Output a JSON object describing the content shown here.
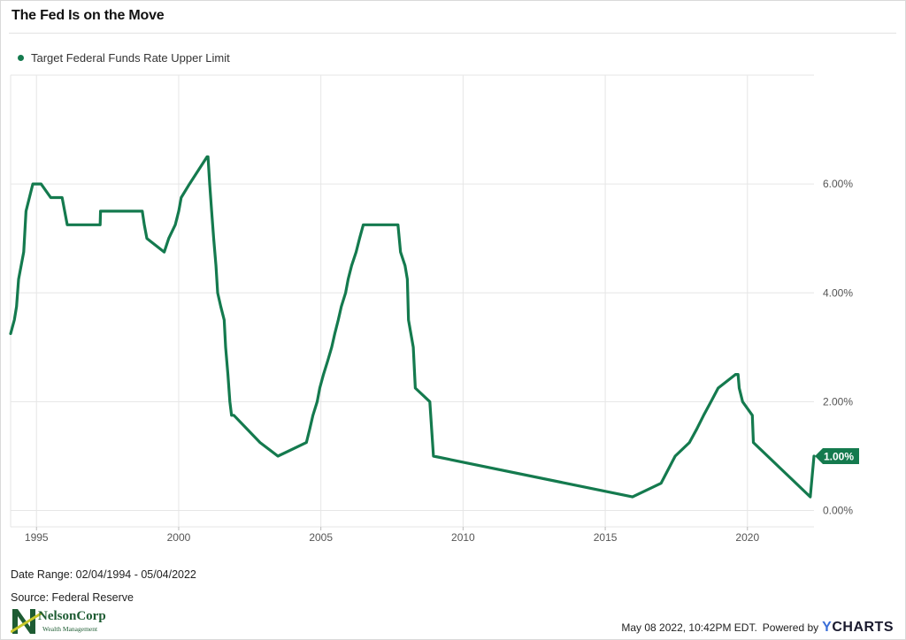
{
  "title": "The Fed Is on the Move",
  "legend": {
    "label": "Target Federal Funds Rate Upper Limit",
    "color": "#147a4e"
  },
  "footer": {
    "date_range": "Date Range: 02/04/1994 - 05/04/2022",
    "source": "Source: Federal Reserve",
    "timestamp": "May 08 2022, 10:42PM EDT.",
    "powered_by": "Powered by",
    "brand_y": "Y",
    "brand_rest": "CHARTS",
    "logo_name": "NelsonCorp",
    "logo_sub": "Wealth Management"
  },
  "chart_data": {
    "type": "line",
    "title": "The Fed Is on the Move",
    "xlabel": "",
    "ylabel": "",
    "x_tick_labels": [
      "1995",
      "2000",
      "2005",
      "2010",
      "2015",
      "2020"
    ],
    "x_tick_values": [
      1995,
      2000,
      2005,
      2010,
      2015,
      2020
    ],
    "y_tick_labels": [
      "0.00%",
      "2.00%",
      "4.00%",
      "6.00%"
    ],
    "y_tick_values": [
      0,
      2,
      4,
      6
    ],
    "xlim": [
      1994.09,
      2022.34
    ],
    "ylim": [
      -0.3,
      8.0
    ],
    "grid": true,
    "legend_position": "top-left",
    "last_value_label": "1.00%",
    "series": [
      {
        "name": "Target Federal Funds Rate Upper Limit",
        "color": "#147a4e",
        "x": [
          1994.09,
          1994.22,
          1994.3,
          1994.37,
          1994.55,
          1994.63,
          1994.87,
          1994.96,
          1995.09,
          1995.16,
          1995.5,
          1995.9,
          1996.08,
          1997.24,
          1997.25,
          1998.72,
          1998.79,
          1998.88,
          1999.49,
          1999.65,
          1999.88,
          2000.0,
          2000.09,
          2000.38,
          2001.0,
          2001.03,
          2001.09,
          2001.16,
          2001.23,
          2001.31,
          2001.37,
          2001.48,
          2001.6,
          2001.65,
          2001.73,
          2001.8,
          2001.86,
          2001.94,
          2002.86,
          2003.49,
          2004.49,
          2004.61,
          2004.72,
          2004.87,
          2004.96,
          2005.09,
          2005.24,
          2005.38,
          2005.49,
          2005.61,
          2005.72,
          2005.87,
          2005.96,
          2006.08,
          2006.24,
          2006.36,
          2006.49,
          2007.71,
          2007.8,
          2007.96,
          2008.04,
          2008.08,
          2008.25,
          2008.32,
          2008.83,
          2008.96,
          2015.96,
          2016.96,
          2017.21,
          2017.46,
          2017.96,
          2018.22,
          2018.46,
          2018.72,
          2018.97,
          2019.58,
          2019.67,
          2019.71,
          2019.83,
          2020.17,
          2020.21,
          2022.21,
          2022.34
        ],
        "values": [
          3.25,
          3.5,
          3.75,
          4.25,
          4.75,
          5.5,
          6.0,
          6.0,
          6.0,
          6.0,
          5.75,
          5.75,
          5.25,
          5.25,
          5.5,
          5.5,
          5.25,
          5.0,
          4.75,
          5.0,
          5.25,
          5.5,
          5.75,
          6.0,
          6.5,
          6.5,
          6.0,
          5.5,
          5.0,
          4.5,
          4.0,
          3.75,
          3.5,
          3.0,
          2.5,
          2.0,
          1.75,
          1.75,
          1.25,
          1.0,
          1.25,
          1.5,
          1.75,
          2.0,
          2.25,
          2.5,
          2.75,
          3.0,
          3.25,
          3.5,
          3.75,
          4.0,
          4.25,
          4.5,
          4.75,
          5.0,
          5.25,
          5.25,
          4.75,
          4.5,
          4.25,
          3.5,
          3.0,
          2.25,
          2.0,
          1.0,
          0.25,
          0.5,
          0.75,
          1.0,
          1.25,
          1.5,
          1.75,
          2.0,
          2.25,
          2.5,
          2.5,
          2.25,
          2.0,
          1.75,
          1.25,
          0.25,
          1.0
        ]
      }
    ]
  }
}
